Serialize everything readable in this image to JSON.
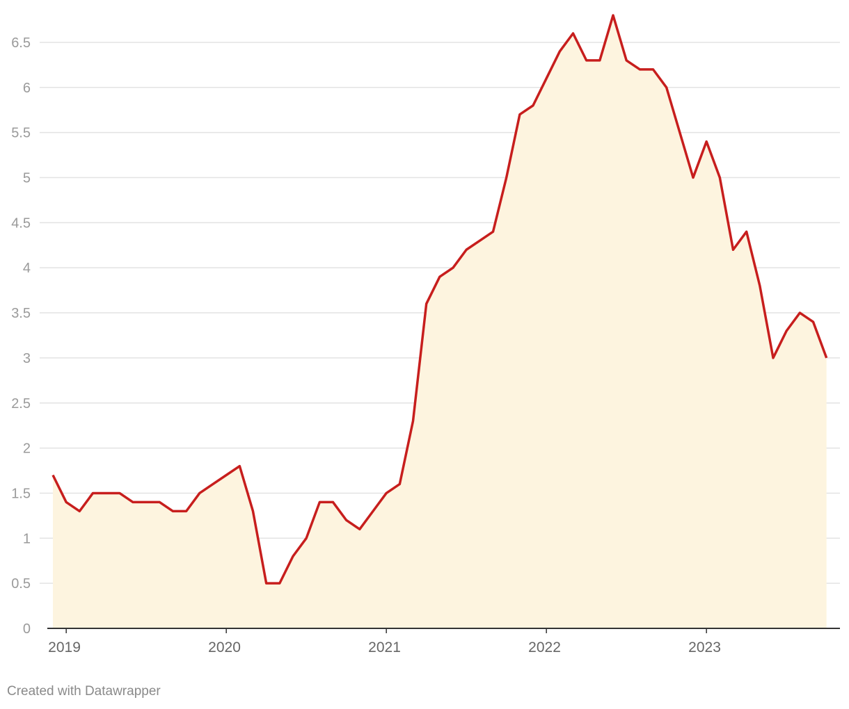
{
  "chart_data": {
    "type": "area",
    "title": "",
    "xlabel": "",
    "ylabel": "",
    "x_start": "2018-12",
    "x_step": "month",
    "xticks": [
      "2019",
      "2020",
      "2021",
      "2022",
      "2023"
    ],
    "ylim": [
      0,
      6.8
    ],
    "yticks": [
      "0",
      "0.5",
      "1",
      "1.5",
      "2",
      "2.5",
      "3",
      "3.5",
      "4",
      "4.5",
      "5",
      "5.5",
      "6",
      "6.5"
    ],
    "grid": true,
    "series": [
      {
        "values": [
          1.7,
          1.4,
          1.3,
          1.5,
          1.5,
          1.5,
          1.4,
          1.4,
          1.4,
          1.3,
          1.3,
          1.5,
          1.6,
          1.7,
          1.8,
          1.3,
          0.5,
          0.5,
          0.8,
          1.0,
          1.4,
          1.4,
          1.2,
          1.1,
          1.3,
          1.5,
          1.6,
          2.3,
          3.6,
          3.9,
          4.0,
          4.2,
          4.3,
          4.4,
          5.0,
          5.7,
          5.8,
          6.1,
          6.4,
          6.6,
          6.3,
          6.3,
          6.8,
          6.3,
          6.2,
          6.2,
          6.0,
          5.5,
          5.0,
          5.4,
          5.0,
          4.2,
          4.4,
          3.8,
          3.0,
          3.3,
          3.5,
          3.4,
          3.0
        ],
        "color": "#c71e1d",
        "fill": "#fdf4df"
      }
    ]
  },
  "footer": {
    "credit": "Created with Datawrapper"
  }
}
